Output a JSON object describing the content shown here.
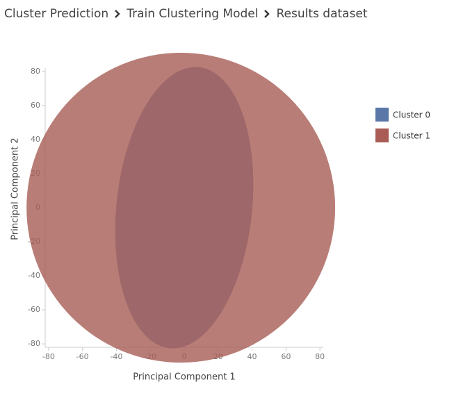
{
  "breadcrumb": [
    "Cluster Prediction",
    "Train Clustering Model",
    "Results dataset"
  ],
  "chart_data": {
    "type": "cluster",
    "x_label": "Principal Component 1",
    "y_label": "Principal Component 2",
    "xlim": [
      -82,
      82
    ],
    "ylim": [
      -82,
      82
    ],
    "xticks": [
      -80,
      -60,
      -40,
      -20,
      0,
      20,
      40,
      60,
      80
    ],
    "yticks": [
      -80,
      -60,
      -40,
      -20,
      0,
      20,
      40,
      60,
      80
    ],
    "series": [
      {
        "name": "Cluster 0",
        "color": "#5a77a8",
        "cx": 0,
        "cy": 0,
        "rx": 40,
        "ry": 83,
        "angle": 6
      },
      {
        "name": "Cluster 1",
        "color": "#a85c55",
        "cx": -2,
        "cy": 0,
        "rx": 91,
        "ry": 91,
        "angle": 0
      }
    ]
  }
}
